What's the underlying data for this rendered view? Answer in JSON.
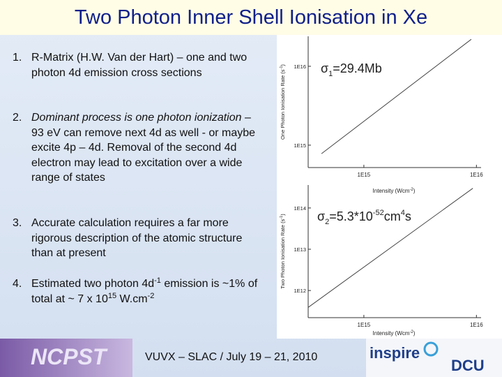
{
  "title": "Two Photon Inner Shell Ionisation in Xe",
  "items": [
    {
      "number": "1.",
      "text": "R-Matrix  (H.W. Van der Hart) – one and two photon 4d emission cross sections"
    },
    {
      "number": "2.",
      "emphasis": "Dominant process is one photon ionization",
      "text": " – 93 eV can remove next 4d as well  - or maybe excite 4p – 4d. Removal of the second 4d electron may lead to excitation over a wide range of states"
    },
    {
      "number": "3.",
      "text": "Accurate calculation requires a far more rigorous description of the atomic structure than at present"
    },
    {
      "number": "4.",
      "parts": [
        "Estimated two photon 4d",
        "-1",
        " emission is ~1% of total at ~ 7 x 10",
        "15",
        " W.cm",
        "-2"
      ]
    }
  ],
  "footer": {
    "logo": "NCPST",
    "event": "VUVX – SLAC / July 19 – 21, 2010",
    "partner_logos": [
      "inspire",
      "DCU"
    ]
  },
  "chart_data": [
    {
      "type": "line",
      "annotation": [
        "σ",
        "1",
        "=29.4Mb"
      ],
      "xlabel": [
        "Intensity (Wcm",
        "-2",
        ")"
      ],
      "ylabel": [
        "One Photon Ionisation Rate (s",
        "-1",
        ")"
      ],
      "x": [
        420000000000000.0,
        9000000000000000.0
      ],
      "series": [
        {
          "color": "#444444",
          "values": [
            780000000000000.0,
            2.2e+16
          ]
        }
      ],
      "xscale": "log",
      "yscale": "log",
      "xlim": [
        320000000000000.0,
        1.1e+16
      ],
      "ylim": [
        520000000000000.0,
        2.4e+16
      ],
      "xticks": [
        {
          "value": 1000000000000000.0,
          "label": "1E15"
        },
        {
          "value": 1e+16,
          "label": "1E16"
        }
      ],
      "yticks": [
        {
          "value": 1000000000000000.0,
          "label": "1E15"
        },
        {
          "value": 1e+16,
          "label": "1E16"
        }
      ]
    },
    {
      "type": "line",
      "annotation": [
        "σ",
        "2",
        "=5.3*10",
        "-52",
        "cm",
        "4",
        "s"
      ],
      "xlabel": [
        "Intensity (Wcm",
        "-2",
        ")"
      ],
      "ylabel": [
        "Two Photon Ionisation Rate (s",
        "-1",
        ")"
      ],
      "x": [
        320000000000000.0,
        9300000000000000.0
      ],
      "series": [
        {
          "color": "#444444",
          "values": [
            390000000000.0,
            300000000000000.0
          ]
        }
      ],
      "xscale": "log",
      "yscale": "log",
      "xlim": [
        320000000000000.0,
        1.1e+16
      ],
      "ylim": [
        220000000000.0,
        360000000000000.0
      ],
      "xticks": [
        {
          "value": 1000000000000000.0,
          "label": "1E15"
        },
        {
          "value": 1e+16,
          "label": "1E16"
        }
      ],
      "yticks": [
        {
          "value": 1000000000000.0,
          "label": "1E12"
        },
        {
          "value": 10000000000000.0,
          "label": "1E13"
        },
        {
          "value": 100000000000000.0,
          "label": "1E14"
        }
      ]
    }
  ]
}
